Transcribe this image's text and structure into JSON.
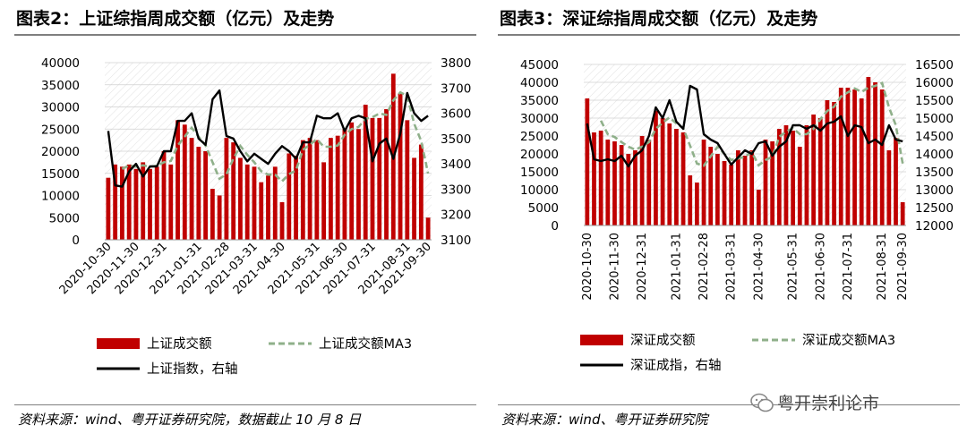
{
  "panels": [
    {
      "title": "图表2：上证综指周成交额（亿元）及走势",
      "source": "资料来源：wind、粤开证券研究院，数据截止 10 月 8 日"
    },
    {
      "title": "图表3：深证综指周成交额（亿元）及走势",
      "source": "资料来源：wind、粤开证券研究院"
    }
  ],
  "watermark": "粤开崇利论市",
  "colors": {
    "bar": "#c00000",
    "ma": "#8fb08a",
    "line": "#000000",
    "grid": "#d0d0d0"
  },
  "chart_data": [
    {
      "type": "bar",
      "legend": [
        "上证成交额",
        "上证成交额MA3",
        "上证指数，右轴"
      ],
      "x_tick_labels": [
        "2020-10-30",
        "2020-11-30",
        "2020-12-31",
        "2021-01-31",
        "2021-02-28",
        "2021-03-31",
        "2021-04-30",
        "2021-05-31",
        "2021-06-30",
        "2021-07-31",
        "2021-08-31",
        "2021-09-30"
      ],
      "y_left_ticks": [
        0,
        5000,
        10000,
        15000,
        20000,
        25000,
        30000,
        35000,
        40000
      ],
      "y_right_ticks": [
        3100,
        3200,
        3300,
        3400,
        3500,
        3600,
        3700,
        3800
      ],
      "ylim_left": [
        0,
        40000
      ],
      "ylim_right": [
        3100,
        3800
      ],
      "grid": true,
      "series": [
        {
          "name": "上证成交额",
          "type": "bar",
          "axis": "left",
          "values": [
            14000,
            17000,
            16500,
            17000,
            16000,
            17500,
            16000,
            16500,
            20000,
            17000,
            27000,
            26000,
            23000,
            21000,
            20000,
            11500,
            10000,
            23000,
            22000,
            18500,
            17000,
            16500,
            13000,
            14500,
            16500,
            8500,
            19500,
            19000,
            22500,
            23000,
            22500,
            17500,
            23000,
            23500,
            25000,
            26500,
            25000,
            30500,
            27500,
            27500,
            29500,
            37500,
            33000,
            27000,
            18500,
            21500,
            5000
          ]
        },
        {
          "name": "上证成交额MA3",
          "type": "line",
          "axis": "left",
          "values": [
            null,
            null,
            16000,
            16800,
            16500,
            16800,
            16500,
            16700,
            17500,
            17800,
            21300,
            23300,
            25300,
            23300,
            21300,
            17500,
            13800,
            14800,
            18300,
            21200,
            19200,
            17500,
            15500,
            14700,
            14700,
            13200,
            14800,
            15700,
            20300,
            21500,
            22700,
            21000,
            21000,
            21300,
            23700,
            25000,
            25500,
            27300,
            27700,
            28500,
            28200,
            31500,
            33300,
            32500,
            26200,
            22300,
            15000
          ]
        },
        {
          "name": "上证指数，右轴",
          "type": "line",
          "axis": "right",
          "values": [
            3530,
            3315,
            3310,
            3370,
            3400,
            3350,
            3390,
            3390,
            3450,
            3450,
            3570,
            3570,
            3600,
            3500,
            3475,
            3655,
            3690,
            3510,
            3500,
            3450,
            3410,
            3440,
            3420,
            3400,
            3440,
            3470,
            3450,
            3420,
            3485,
            3485,
            3590,
            3580,
            3580,
            3600,
            3530,
            3580,
            3590,
            3580,
            3410,
            3480,
            3500,
            3420,
            3520,
            3680,
            3600,
            3570,
            3590
          ]
        }
      ]
    },
    {
      "type": "bar",
      "legend": [
        "深证成交额",
        "深证成交额MA3",
        "深证成指，右轴"
      ],
      "x_tick_labels": [
        "2020-10-30",
        "2020-11-30",
        "2020-12-31",
        "2021-01-31",
        "2021-02-28",
        "2021-03-31",
        "2021-04-30",
        "2021-05-31",
        "2021-06-30",
        "2021-07-31",
        "2021-08-31",
        "2021-09-30"
      ],
      "y_left_ticks": [
        0,
        5000,
        10000,
        15000,
        20000,
        25000,
        30000,
        35000,
        40000,
        45000
      ],
      "y_right_ticks": [
        12000,
        12500,
        13000,
        13500,
        14000,
        14500,
        15000,
        15500,
        16000,
        16500
      ],
      "ylim_left": [
        0,
        45000
      ],
      "ylim_right": [
        12000,
        16500
      ],
      "grid": true,
      "series": [
        {
          "name": "深证成交额",
          "type": "bar",
          "axis": "left",
          "values": [
            35500,
            26000,
            26500,
            24000,
            23500,
            22500,
            20000,
            21000,
            25000,
            24000,
            32000,
            30000,
            28500,
            27000,
            26000,
            14000,
            12000,
            24000,
            22000,
            20000,
            18000,
            17000,
            21000,
            19500,
            21000,
            10000,
            24000,
            23500,
            27000,
            28000,
            26500,
            22000,
            28000,
            31000,
            30000,
            35000,
            34500,
            38500,
            38500,
            38000,
            35500,
            41500,
            40000,
            38000,
            21000,
            24500,
            6500
          ]
        },
        {
          "name": "深证成交额MA3",
          "type": "line",
          "axis": "left",
          "values": [
            null,
            null,
            29300,
            25500,
            24700,
            23300,
            22000,
            21200,
            22000,
            23300,
            27000,
            28700,
            30200,
            28500,
            27200,
            22300,
            17300,
            16700,
            19300,
            22000,
            20000,
            18300,
            18700,
            19200,
            20500,
            16800,
            18300,
            19200,
            24800,
            26200,
            27200,
            25500,
            25500,
            27000,
            29700,
            32000,
            33200,
            36000,
            37200,
            38300,
            37300,
            38500,
            39000,
            39800,
            33000,
            28000,
            17300
          ]
        },
        {
          "name": "深证成指，右轴",
          "type": "line",
          "axis": "right",
          "values": [
            14850,
            13850,
            13800,
            13850,
            13800,
            13950,
            13650,
            13950,
            14100,
            14500,
            15300,
            15000,
            15500,
            14900,
            14700,
            15900,
            15800,
            14550,
            14400,
            14300,
            14000,
            13700,
            13900,
            14100,
            14000,
            14300,
            14350,
            13950,
            14200,
            14350,
            14800,
            14800,
            14700,
            14800,
            14650,
            14850,
            14900,
            15050,
            14500,
            14800,
            14750,
            14300,
            14400,
            14250,
            14800,
            14400,
            14350
          ]
        }
      ]
    }
  ]
}
